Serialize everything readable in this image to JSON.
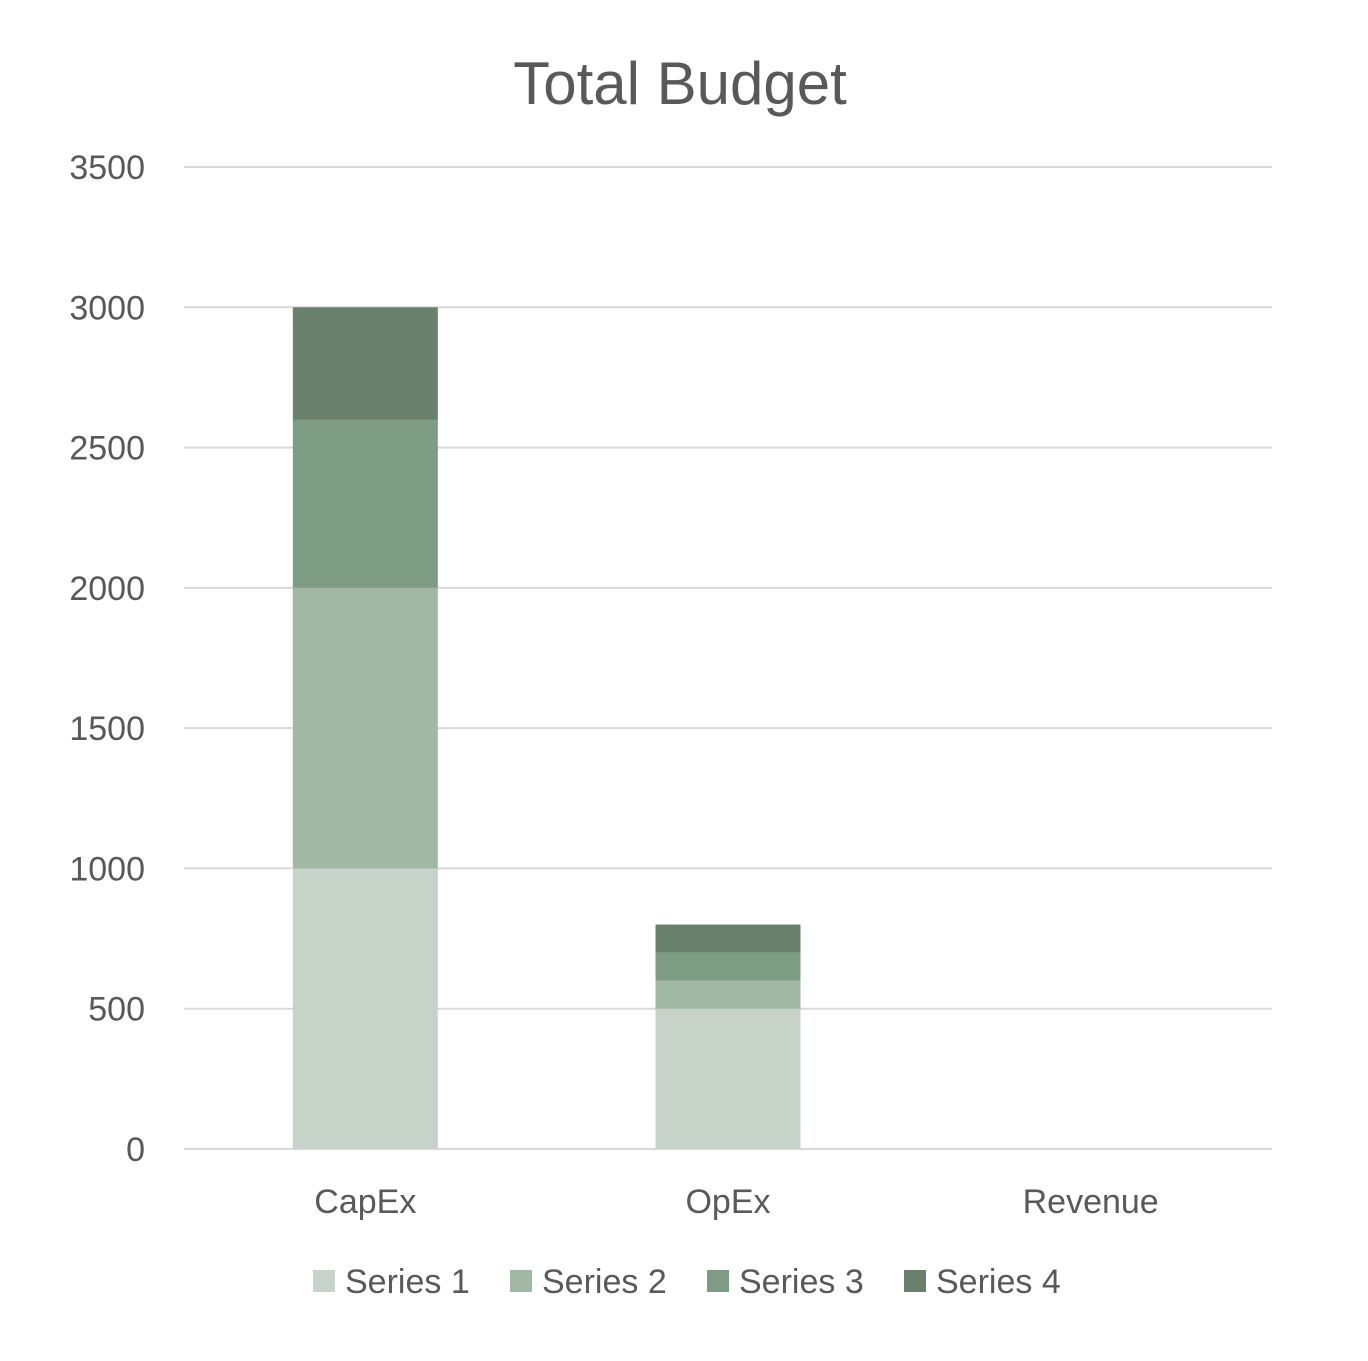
{
  "chart_data": {
    "type": "bar",
    "stacked": true,
    "title": "Total Budget",
    "xlabel": "",
    "ylabel": "",
    "categories": [
      "CapEx",
      "OpEx",
      "Revenue"
    ],
    "series": [
      {
        "name": "Series 1",
        "values": [
          1000,
          500,
          0
        ],
        "color": "#c7d3c9"
      },
      {
        "name": "Series 2",
        "values": [
          1000,
          100,
          0
        ],
        "color": "#a1b8a4"
      },
      {
        "name": "Series 3",
        "values": [
          600,
          100,
          0
        ],
        "color": "#7e9c84"
      },
      {
        "name": "Series 4",
        "values": [
          400,
          100,
          0
        ],
        "color": "#68806c"
      }
    ],
    "ylim": [
      0,
      3500
    ],
    "yticks": [
      0,
      500,
      1000,
      1500,
      2000,
      2500,
      3000,
      3500
    ],
    "ytick_labels": [
      "0",
      "500",
      "1000",
      "1500",
      "2000",
      "2500",
      "3000",
      "3500"
    ],
    "grid": true,
    "legend_position": "bottom",
    "colors": {
      "text": "#595959",
      "grid": "#d9d9d9"
    }
  }
}
